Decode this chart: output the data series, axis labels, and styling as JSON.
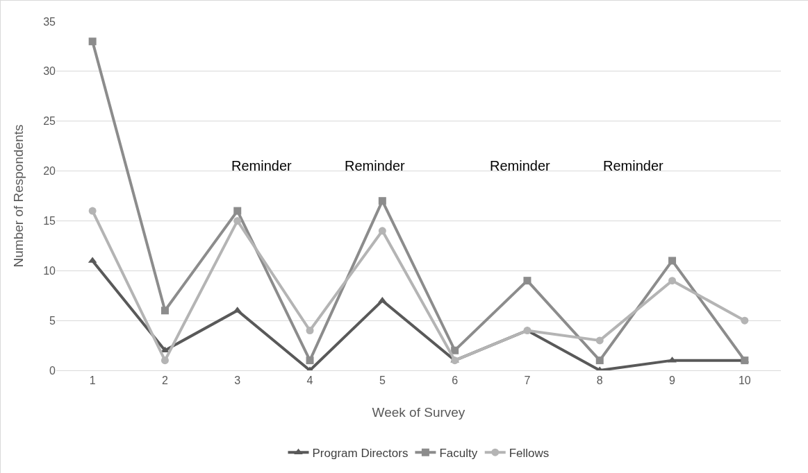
{
  "chart_data": {
    "type": "line",
    "xlabel": "Week of Survey",
    "ylabel": "Number of Respondents",
    "x": [
      1,
      2,
      3,
      4,
      5,
      6,
      7,
      8,
      9,
      10
    ],
    "xlim": [
      0.5,
      10.5
    ],
    "xticks": [
      1,
      2,
      3,
      4,
      5,
      6,
      7,
      8,
      9,
      10
    ],
    "ylim": [
      0,
      35
    ],
    "yticks": [
      0,
      5,
      10,
      15,
      20,
      25,
      30,
      35
    ],
    "grid": "y",
    "legend": "bottom",
    "line_style": "solid",
    "series": [
      {
        "name": "Program Directors",
        "color": "#595959",
        "marker": "triangle",
        "values": [
          11,
          2,
          6,
          0,
          7,
          1,
          4,
          0,
          1,
          1
        ]
      },
      {
        "name": "Faculty",
        "color": "#8c8c8c",
        "marker": "square",
        "values": [
          33,
          6,
          16,
          1,
          17,
          2,
          9,
          1,
          11,
          1
        ]
      },
      {
        "name": "Fellows",
        "color": "#b4b4b4",
        "marker": "circle",
        "values": [
          16,
          1,
          15,
          4,
          14,
          1,
          4,
          3,
          9,
          5
        ]
      }
    ],
    "annotations": [
      "Reminder",
      "Reminder",
      "Reminder",
      "Reminder"
    ]
  }
}
